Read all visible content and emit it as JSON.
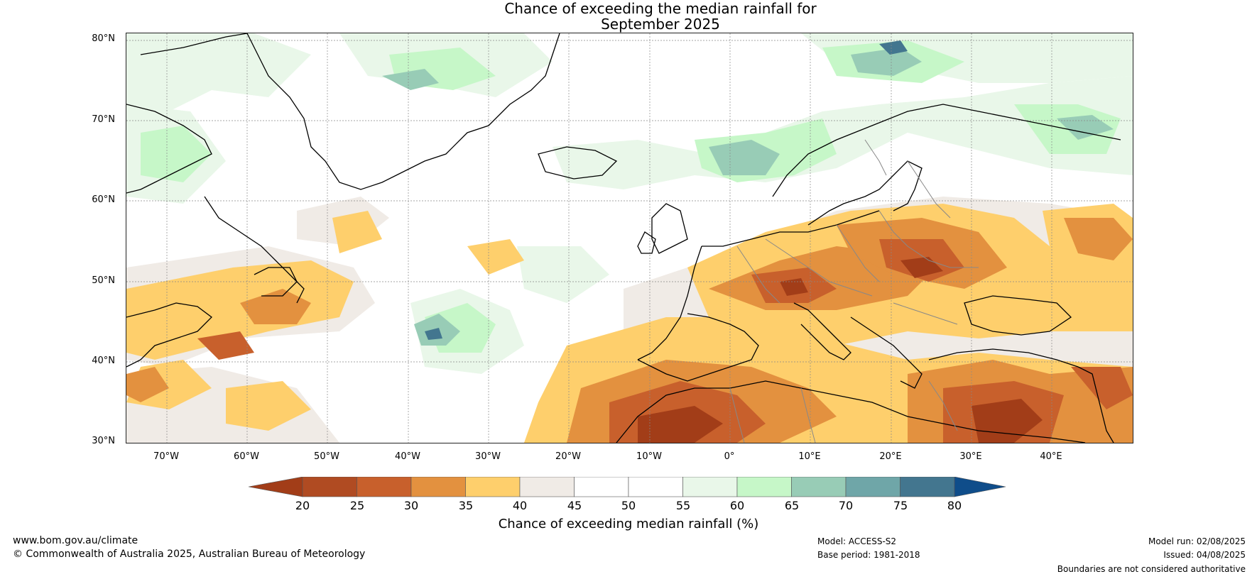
{
  "title": {
    "line1": "Chance of exceeding the median rainfall for",
    "line2": "September 2025"
  },
  "map": {
    "lat_labels": [
      "80°N",
      "70°N",
      "60°N",
      "50°N",
      "40°N",
      "30°N"
    ],
    "lon_labels": [
      "70°W",
      "60°W",
      "50°W",
      "40°W",
      "30°W",
      "20°W",
      "10°W",
      "0°",
      "10°E",
      "20°E",
      "30°E",
      "40°E"
    ],
    "lat_range": [
      30,
      81
    ],
    "lon_range": [
      -75,
      50
    ]
  },
  "colorbar": {
    "ticks": [
      "20",
      "25",
      "30",
      "35",
      "40",
      "45",
      "50",
      "55",
      "60",
      "65",
      "70",
      "75",
      "80"
    ],
    "colors": [
      "#a23d18",
      "#b04b22",
      "#c8602c",
      "#e3913f",
      "#fecf6c",
      "#f0ebe6",
      "#ffffff",
      "#ffffff",
      "#e9f7e9",
      "#c6f7c8",
      "#98ccb6",
      "#6fa6a8",
      "#43768f",
      "#0f4d8a"
    ],
    "label": "Chance of exceeding median rainfall (%)"
  },
  "footer": {
    "website": "www.bom.gov.au/climate",
    "copyright": "© Commonwealth of Australia 2025, Australian Bureau of Meteorology",
    "model": "Model: ACCESS-S2",
    "base_period": "Base period: 1981-2018",
    "model_run": "Model run: 02/08/2025",
    "issued": "Issued: 04/08/2025",
    "disclaimer": "Boundaries are not considered authoritative"
  }
}
